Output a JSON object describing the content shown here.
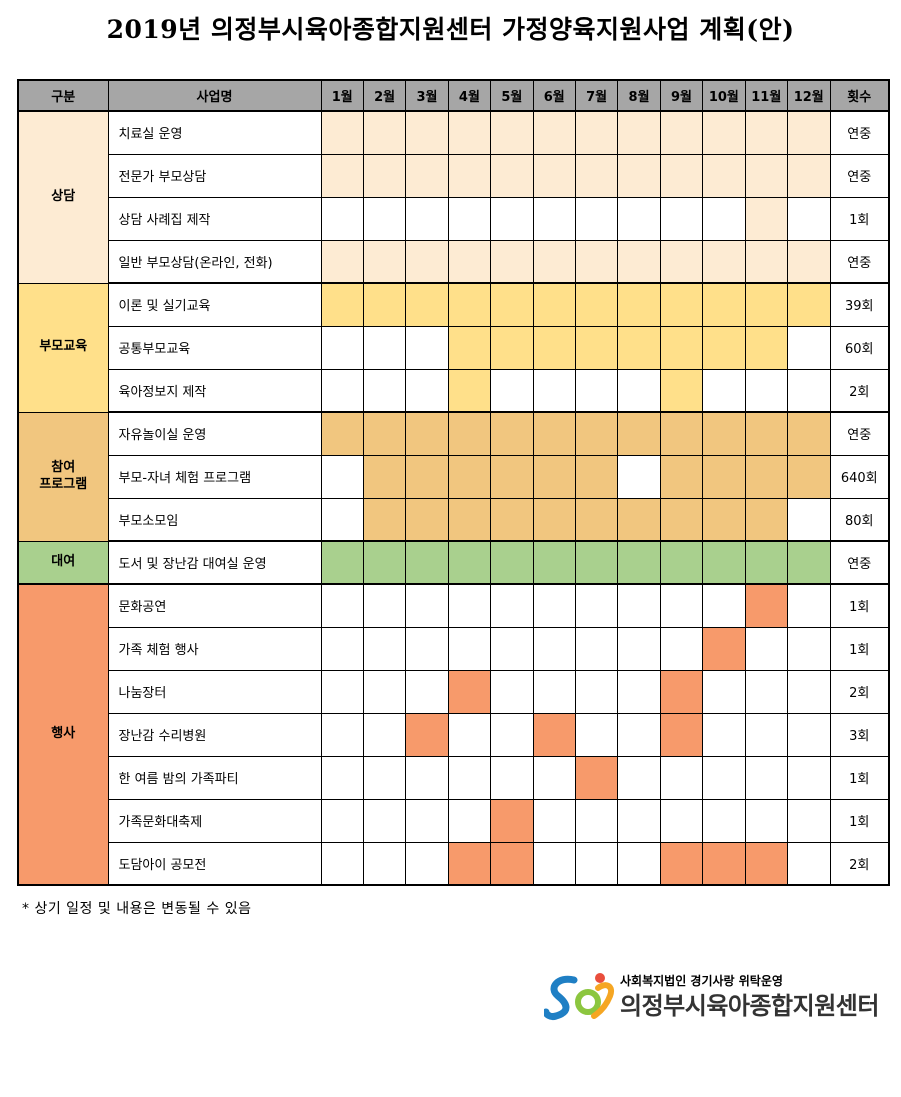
{
  "title": "2019년 의정부시육아종합지원센터 가정양육지원사업 계획(안)",
  "headers": {
    "category": "구분",
    "name": "사업명",
    "months": [
      "1월",
      "2월",
      "3월",
      "4월",
      "5월",
      "6월",
      "7월",
      "8월",
      "9월",
      "10월",
      "11월",
      "12월"
    ],
    "count": "횟수"
  },
  "groups": [
    {
      "label": "상담",
      "color": "#fdebd3",
      "rows": [
        {
          "name": "치료실 운영",
          "months": [
            1,
            1,
            1,
            1,
            1,
            1,
            1,
            1,
            1,
            1,
            1,
            1
          ],
          "count": "연중"
        },
        {
          "name": "전문가 부모상담",
          "months": [
            1,
            1,
            1,
            1,
            1,
            1,
            1,
            1,
            1,
            1,
            1,
            1
          ],
          "count": "연중"
        },
        {
          "name": "상담 사례집 제작",
          "months": [
            0,
            0,
            0,
            0,
            0,
            0,
            0,
            0,
            0,
            0,
            1,
            0
          ],
          "count": "1회"
        },
        {
          "name": "일반 부모상담(온라인, 전화)",
          "months": [
            1,
            1,
            1,
            1,
            1,
            1,
            1,
            1,
            1,
            1,
            1,
            1
          ],
          "count": "연중"
        }
      ]
    },
    {
      "label": "부모교육",
      "color": "#ffe08a",
      "rows": [
        {
          "name": "이론 및 실기교육",
          "months": [
            1,
            1,
            1,
            1,
            1,
            1,
            1,
            1,
            1,
            1,
            1,
            1
          ],
          "count": "39회"
        },
        {
          "name": "공통부모교육",
          "months": [
            0,
            0,
            0,
            1,
            1,
            1,
            1,
            1,
            1,
            1,
            1,
            0
          ],
          "count": "60회"
        },
        {
          "name": "육아정보지 제작",
          "months": [
            0,
            0,
            0,
            1,
            0,
            0,
            0,
            0,
            1,
            0,
            0,
            0
          ],
          "count": "2회"
        }
      ]
    },
    {
      "label": "참여\n프로그램",
      "color": "#f1c67f",
      "rows": [
        {
          "name": "자유놀이실 운영",
          "months": [
            1,
            1,
            1,
            1,
            1,
            1,
            1,
            1,
            1,
            1,
            1,
            1
          ],
          "count": "연중"
        },
        {
          "name": "부모-자녀 체험 프로그램",
          "months": [
            0,
            1,
            1,
            1,
            1,
            1,
            1,
            0,
            1,
            1,
            1,
            1
          ],
          "count": "640회"
        },
        {
          "name": "부모소모임",
          "months": [
            0,
            1,
            1,
            1,
            1,
            1,
            1,
            1,
            1,
            1,
            1,
            0
          ],
          "count": "80회"
        }
      ]
    },
    {
      "label": "대여",
      "color": "#a9d08e",
      "rows": [
        {
          "name": "도서 및 장난감 대여실 운영",
          "months": [
            1,
            1,
            1,
            1,
            1,
            1,
            1,
            1,
            1,
            1,
            1,
            1
          ],
          "count": "연중"
        }
      ]
    },
    {
      "label": "행사",
      "color": "#f79a6b",
      "rows": [
        {
          "name": "문화공연",
          "months": [
            0,
            0,
            0,
            0,
            0,
            0,
            0,
            0,
            0,
            0,
            1,
            0
          ],
          "count": "1회"
        },
        {
          "name": "가족 체험 행사",
          "months": [
            0,
            0,
            0,
            0,
            0,
            0,
            0,
            0,
            0,
            1,
            0,
            0
          ],
          "count": "1회"
        },
        {
          "name": "나눔장터",
          "months": [
            0,
            0,
            0,
            1,
            0,
            0,
            0,
            0,
            1,
            0,
            0,
            0
          ],
          "count": "2회"
        },
        {
          "name": "장난감 수리병원",
          "months": [
            0,
            0,
            1,
            0,
            0,
            1,
            0,
            0,
            1,
            0,
            0,
            0
          ],
          "count": "3회"
        },
        {
          "name": "한 여름 밤의 가족파티",
          "months": [
            0,
            0,
            0,
            0,
            0,
            0,
            1,
            0,
            0,
            0,
            0,
            0
          ],
          "count": "1회"
        },
        {
          "name": "가족문화대축제",
          "months": [
            0,
            0,
            0,
            0,
            1,
            0,
            0,
            0,
            0,
            0,
            0,
            0
          ],
          "count": "1회"
        },
        {
          "name": "도담아이 공모전",
          "months": [
            0,
            0,
            0,
            1,
            1,
            0,
            0,
            0,
            1,
            1,
            1,
            0
          ],
          "count": "2회"
        }
      ]
    }
  ],
  "note": "* 상기 일정 및 내용은 변동될 수 있음",
  "footer": {
    "org_sub": "사회복지법인 경기사랑 위탁운영",
    "org_name": "의정부시육아종합지원센터",
    "logo_icon": "center-logo-icon"
  }
}
